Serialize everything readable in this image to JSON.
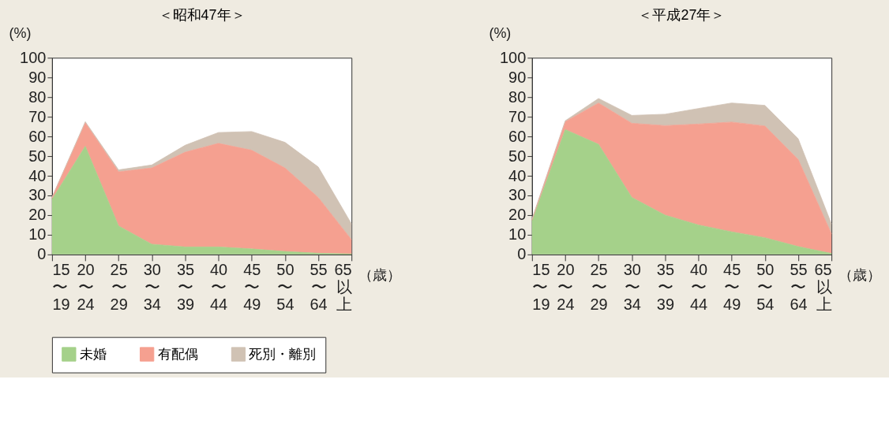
{
  "chart_data": [
    {
      "type": "area",
      "stacked": true,
      "title": "＜昭和47年＞",
      "ylabel": "(%)",
      "xlabel": "（歳）",
      "legend": "bottom",
      "grid": false,
      "categories": [
        "15\n〜\n19",
        "20\n〜\n24",
        "25\n〜\n29",
        "30\n〜\n34",
        "35\n〜\n39",
        "40\n〜\n44",
        "45\n〜\n49",
        "50\n〜\n54",
        "55\n〜\n64",
        "65\n以上"
      ],
      "ylim": [
        0,
        100
      ],
      "yticks": [
        0,
        10,
        20,
        30,
        40,
        50,
        60,
        70,
        80,
        90,
        100
      ],
      "series": [
        {
          "name": "未婚",
          "color": "#a5d18a",
          "values": [
            28,
            55,
            14.5,
            5.2,
            3.8,
            3.8,
            2.8,
            1.5,
            0.6,
            0.2
          ]
        },
        {
          "name": "有配偶",
          "color": "#f5a090",
          "values": [
            1,
            12,
            27.5,
            38.8,
            48.2,
            52.7,
            50.2,
            42.5,
            28.4,
            7.3
          ]
        },
        {
          "name": "死別・離別",
          "color": "#d0c2b4",
          "values": [
            0,
            0.5,
            1,
            1.5,
            3.5,
            5.5,
            9.5,
            13,
            15.5,
            8
          ]
        }
      ]
    },
    {
      "type": "area",
      "stacked": true,
      "title": "＜平成27年＞",
      "ylabel": "(%)",
      "xlabel": "（歳）",
      "legend": "bottom",
      "grid": false,
      "categories": [
        "15\n〜\n19",
        "20\n〜\n24",
        "25\n〜\n29",
        "30\n〜\n34",
        "35\n〜\n39",
        "40\n〜\n44",
        "45\n〜\n49",
        "50\n〜\n54",
        "55\n〜\n64",
        "65\n以上"
      ],
      "ylim": [
        0,
        100
      ],
      "yticks": [
        0,
        10,
        20,
        30,
        40,
        50,
        60,
        70,
        80,
        90,
        100
      ],
      "series": [
        {
          "name": "未婚",
          "color": "#a5d18a",
          "values": [
            17,
            63.5,
            56,
            29,
            20,
            15,
            11.5,
            8.5,
            4,
            0.5
          ]
        },
        {
          "name": "有配偶",
          "color": "#f5a090",
          "values": [
            0.5,
            4,
            21,
            37.7,
            45.5,
            51.3,
            55.8,
            56.8,
            44.3,
            10
          ]
        },
        {
          "name": "死別・離別",
          "color": "#d0c2b4",
          "values": [
            0.5,
            0.5,
            2.3,
            4,
            5.8,
            7.9,
            9.7,
            10.5,
            10.5,
            5
          ]
        }
      ]
    }
  ]
}
